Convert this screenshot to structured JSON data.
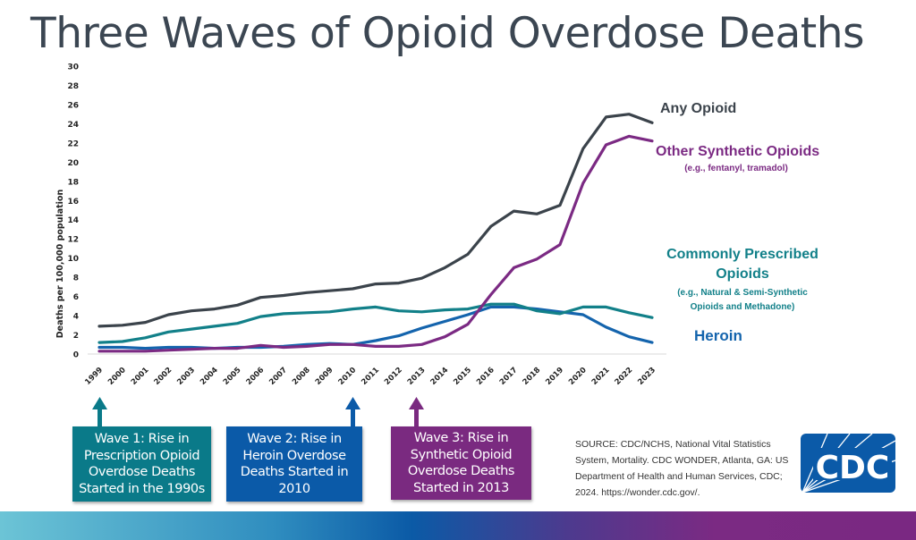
{
  "title": "Three Waves of Opioid Overdose Deaths",
  "chart_data": {
    "type": "line",
    "title": "",
    "xlabel": "",
    "ylabel": "Deaths per 100,000 population",
    "ylim": [
      0,
      30
    ],
    "yticks": [
      0,
      2,
      4,
      6,
      8,
      10,
      12,
      14,
      16,
      18,
      20,
      22,
      24,
      26,
      28,
      30
    ],
    "grid": false,
    "x": [
      "1999",
      "2000",
      "2001",
      "2002",
      "2003",
      "2004",
      "2005",
      "2006",
      "2007",
      "2008",
      "2009",
      "2010",
      "2011",
      "2012",
      "2013",
      "2014",
      "2015",
      "2016",
      "2017",
      "2018",
      "2019",
      "2020",
      "2021",
      "2022",
      "2023"
    ],
    "series": [
      {
        "name": "Any Opioid",
        "color": "#3b434b",
        "values": [
          2.9,
          3.0,
          3.3,
          4.1,
          4.5,
          4.7,
          5.1,
          5.9,
          6.1,
          6.4,
          6.6,
          6.8,
          7.3,
          7.4,
          7.9,
          9.0,
          10.4,
          13.3,
          14.9,
          14.6,
          15.5,
          21.4,
          24.7,
          25.0,
          24.1
        ]
      },
      {
        "name": "Other Synthetic Opioids",
        "note": "(e.g., fentanyl, tramadol)",
        "color": "#7b2a83",
        "values": [
          0.3,
          0.3,
          0.3,
          0.4,
          0.5,
          0.6,
          0.6,
          0.9,
          0.7,
          0.8,
          1.0,
          1.0,
          0.8,
          0.8,
          1.0,
          1.8,
          3.1,
          6.2,
          9.0,
          9.9,
          11.4,
          17.8,
          21.8,
          22.7,
          22.2
        ]
      },
      {
        "name": "Commonly Prescribed Opioids",
        "note": "(e.g., Natural & Semi-Synthetic Opioids and Methadone)",
        "color": "#128089",
        "values": [
          1.2,
          1.3,
          1.7,
          2.3,
          2.6,
          2.9,
          3.2,
          3.9,
          4.2,
          4.3,
          4.4,
          4.7,
          4.9,
          4.5,
          4.4,
          4.6,
          4.7,
          5.2,
          5.2,
          4.5,
          4.2,
          4.9,
          4.9,
          4.3,
          3.8
        ]
      },
      {
        "name": "Heroin",
        "color": "#1464ad",
        "values": [
          0.7,
          0.7,
          0.6,
          0.7,
          0.7,
          0.6,
          0.7,
          0.7,
          0.8,
          1.0,
          1.1,
          1.0,
          1.4,
          1.9,
          2.7,
          3.4,
          4.1,
          4.9,
          4.9,
          4.7,
          4.4,
          4.1,
          2.8,
          1.8,
          1.2
        ]
      }
    ]
  },
  "labels": {
    "any": "Any Opioid",
    "synthetic": "Other Synthetic Opioids",
    "synthetic_note": "(e.g., fentanyl, tramadol)",
    "prescribed_1": "Commonly Prescribed",
    "prescribed_2": "Opioids",
    "prescribed_note_1": "(e.g., Natural & Semi-Synthetic",
    "prescribed_note_2": "Opioids and Methadone)",
    "heroin": "Heroin"
  },
  "waves": [
    {
      "text": "Wave 1: Rise in Prescription Opioid Overdose Deaths Started in the 1990s",
      "color": "#0a7a89"
    },
    {
      "text": "Wave 2: Rise in Heroin Overdose Deaths Started in 2010",
      "color": "#0b5aa8"
    },
    {
      "text": "Wave 3: Rise in Synthetic Opioid Overdose Deaths Started in 2013",
      "color": "#7a2a80"
    }
  ],
  "source": "SOURCE: CDC/NCHS, National Vital Statistics System, Mortality. CDC WONDER, Atlanta, GA: US Department of Health and Human Services, CDC; 2024. https://wonder.cdc.gov/.",
  "logo": {
    "text": "CDC",
    "color": "#0b5aa8"
  }
}
